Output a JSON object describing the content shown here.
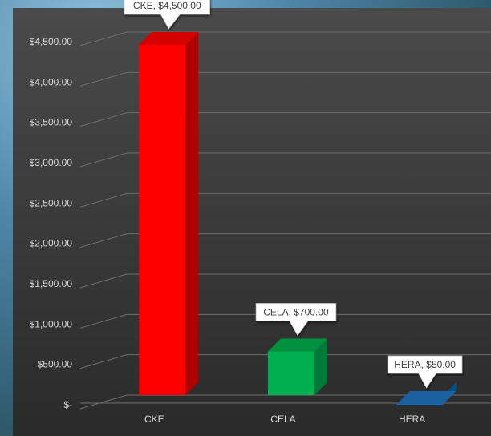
{
  "chart_data": {
    "type": "bar",
    "categories": [
      "CKE",
      "CELA",
      "HERA"
    ],
    "values": [
      4500,
      700,
      50
    ],
    "data_labels": [
      "CKE, $4,500.00",
      "CELA, $700.00",
      "HERA, $50.00"
    ],
    "y_tick_labels": [
      "$-",
      "$500.00",
      "$1,000.00",
      "$1,500.00",
      "$2,000.00",
      "$2,500.00",
      "$3,000.00",
      "$3,500.00",
      "$4,000.00",
      "$4,500.00"
    ],
    "ylim": [
      0,
      4500
    ],
    "title": "",
    "xlabel": "",
    "ylabel": "",
    "grid": true,
    "legend": "none",
    "colors": [
      "#ff0000",
      "#00b050",
      "#0070c0"
    ],
    "side_colors": [
      "#b00000",
      "#007a38",
      "#004f8a"
    ],
    "top_colors": [
      "#d60000",
      "#00913f",
      "#1a5fa0"
    ]
  }
}
